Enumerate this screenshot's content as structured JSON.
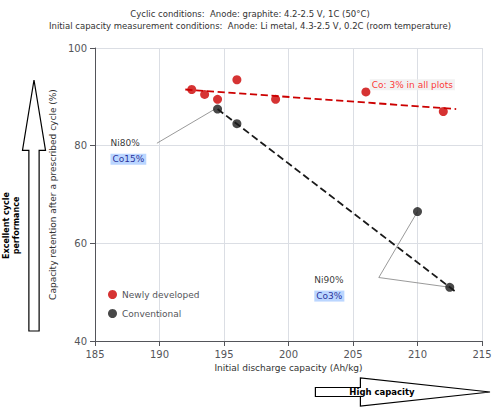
{
  "chart_data": {
    "type": "scatter",
    "title": "Cyclic conditions:  Anode: graphite: 4.2-2.5 V, 1C (50°C)",
    "subtitle": "Initial capacity measurement conditions:  Anode: Li metal, 4.3-2.5 V, 0.2C (room temperature)",
    "x_label": "Initial discharge capacity (Ah/kg)",
    "y_label": "Capacity retention after a prescribed cycle (%)",
    "xlim": [
      185,
      215
    ],
    "ylim": [
      40,
      100
    ],
    "xticks": [
      185,
      190,
      195,
      200,
      205,
      210,
      215
    ],
    "yticks": [
      40,
      60,
      80,
      100
    ],
    "grid": true,
    "legend": "lower left",
    "series": [
      {
        "name": "Newly developed",
        "type": "scatter",
        "marker": "circle",
        "color": "#cc0000",
        "x": [
          192.5,
          193.5,
          194.5,
          196.0,
          199.0,
          206.0,
          212.0
        ],
        "values": [
          91.5,
          90.5,
          89.5,
          93.5,
          89.5,
          91.0,
          87.0
        ]
      },
      {
        "name": "Conventional",
        "type": "scatter",
        "marker": "circle",
        "color": "#1a1a1a",
        "x": [
          194.5,
          196.0,
          210.0,
          212.5
        ],
        "values": [
          87.5,
          84.5,
          66.5,
          51.0
        ]
      },
      {
        "type": "line",
        "line_style": "dashed",
        "color": "#cc0000",
        "x": [
          192.0,
          213.0
        ],
        "values": [
          91.5,
          87.5
        ]
      },
      {
        "type": "line",
        "line_style": "dashed",
        "color": "#1a1a1a",
        "x": [
          194.5,
          213.0
        ],
        "values": [
          87.5,
          50.0
        ]
      },
      {
        "type": "line",
        "line_style": "solid",
        "color": "gray",
        "x": [
          194.3,
          189.8
        ],
        "values": [
          87.5,
          80.5
        ]
      },
      {
        "type": "line",
        "line_style": "solid",
        "color": "gray",
        "x": [
          210.0,
          207.0
        ],
        "values": [
          66.5,
          53.0
        ]
      },
      {
        "type": "line",
        "line_style": "solid",
        "color": "gray",
        "x": [
          212.5,
          207.0
        ],
        "values": [
          51.0,
          53.0
        ]
      }
    ],
    "annotations": [
      {
        "text": "Ni80%",
        "x": 186.2,
        "y": 80.5,
        "color": "black"
      },
      {
        "text": "Co15%",
        "x": 186.2,
        "y": 77.2,
        "color": "navy",
        "background": "#aaccff"
      },
      {
        "text": "Ni90%",
        "x": 202.0,
        "y": 52.5,
        "color": "black"
      },
      {
        "text": "Co3%",
        "x": 202.0,
        "y": 49.2,
        "color": "navy",
        "background": "#aaccff"
      },
      {
        "text": "Co: 3% in all plots",
        "x": 206.3,
        "y": 92.5,
        "color": "red",
        "background": "#eeeeee"
      },
      {
        "text": "Excellent cycle\nperformance",
        "arrow": "up"
      },
      {
        "text": "High capacity",
        "arrow": "right"
      }
    ]
  }
}
